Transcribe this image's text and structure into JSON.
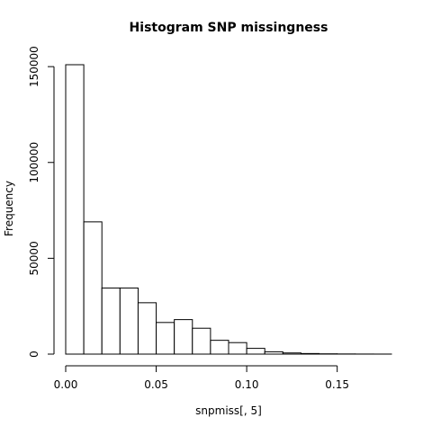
{
  "chart_data": {
    "type": "bar",
    "title": "Histogram SNP missingness",
    "xlabel": "snpmiss[, 5]",
    "ylabel": "Frequency",
    "bin_edges": [
      0.0,
      0.01,
      0.02,
      0.03,
      0.04,
      0.05,
      0.06,
      0.07,
      0.08,
      0.09,
      0.1,
      0.11,
      0.12,
      0.13,
      0.14,
      0.15,
      0.16,
      0.17,
      0.18
    ],
    "values": [
      151000,
      69000,
      34500,
      34500,
      26800,
      16500,
      18000,
      13500,
      7200,
      6000,
      3000,
      1200,
      600,
      300,
      150,
      80,
      40,
      20
    ],
    "xlim": [
      0.0,
      0.18
    ],
    "ylim": [
      0,
      151000
    ],
    "x_ticks": [
      0.0,
      0.05,
      0.1,
      0.15
    ],
    "x_tick_labels": [
      "0.00",
      "0.05",
      "0.10",
      "0.15"
    ],
    "y_ticks": [
      0,
      50000,
      100000,
      150000
    ],
    "y_tick_labels": [
      "0",
      "50000",
      "100000",
      "150000"
    ],
    "grid": false,
    "bar_fill": "#ffffff",
    "bar_stroke": "#000000"
  }
}
